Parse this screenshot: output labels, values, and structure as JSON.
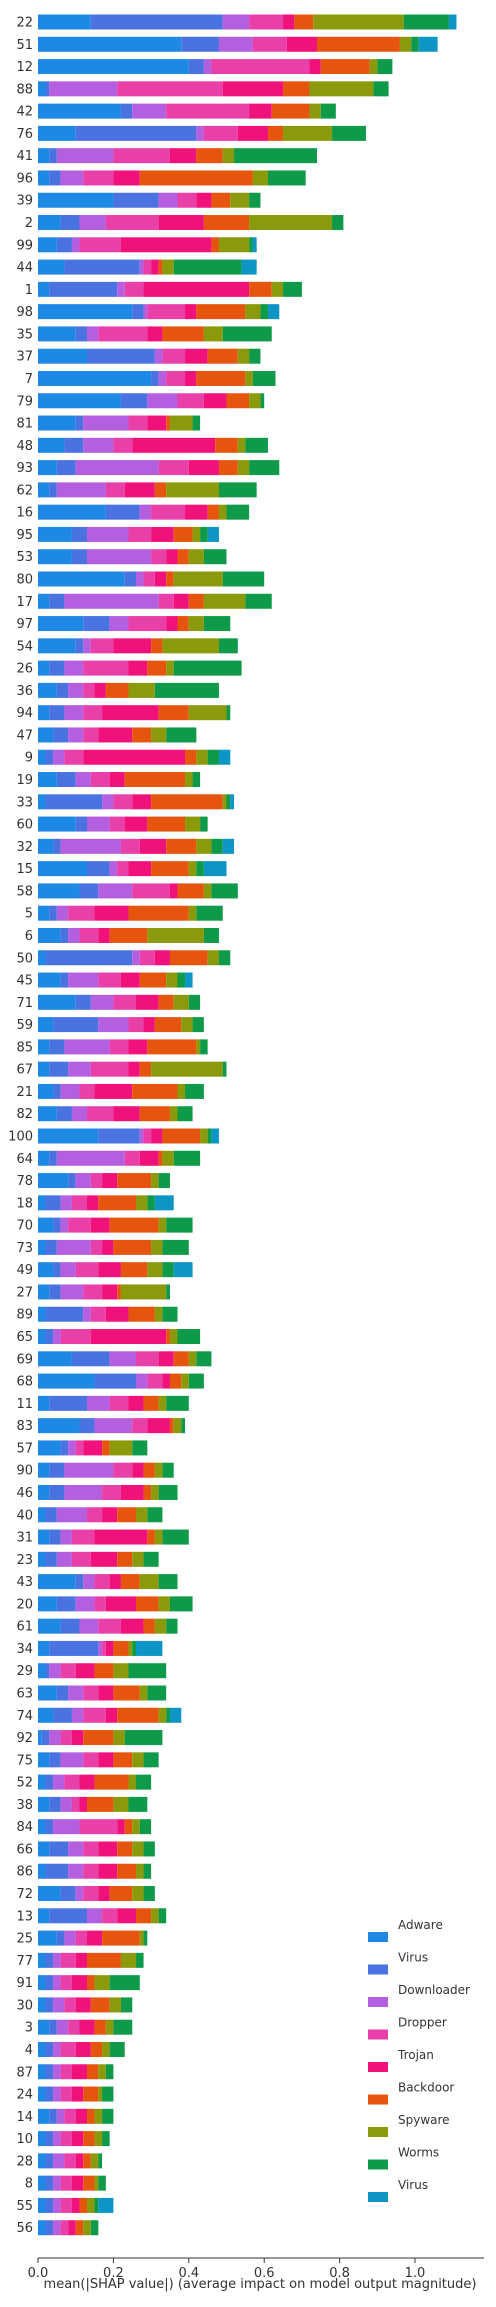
{
  "chart_data": {
    "type": "bar",
    "orientation": "horizontal",
    "stacked": true,
    "xlabel": "mean(|SHAP value|) (average impact on model output magnitude)",
    "xlim": [
      0,
      1.15
    ],
    "xticks": [
      "0.0",
      "0.2",
      "0.4",
      "0.6",
      "0.8",
      "1.0"
    ],
    "xtick_values": [
      0,
      0.2,
      0.4,
      0.6,
      0.8,
      1.0
    ],
    "grid": false,
    "legend_position": "lower-right",
    "categories": [
      "22",
      "51",
      "12",
      "88",
      "42",
      "76",
      "41",
      "96",
      "39",
      "2",
      "99",
      "44",
      "1",
      "98",
      "35",
      "37",
      "7",
      "79",
      "81",
      "48",
      "93",
      "62",
      "16",
      "95",
      "53",
      "80",
      "17",
      "97",
      "54",
      "26",
      "36",
      "94",
      "47",
      "9",
      "19",
      "33",
      "60",
      "32",
      "15",
      "58",
      "5",
      "6",
      "50",
      "45",
      "71",
      "59",
      "85",
      "67",
      "21",
      "82",
      "100",
      "64",
      "78",
      "18",
      "70",
      "73",
      "49",
      "27",
      "89",
      "65",
      "69",
      "68",
      "11",
      "83",
      "57",
      "90",
      "46",
      "40",
      "31",
      "23",
      "43",
      "20",
      "61",
      "34",
      "29",
      "63",
      "74",
      "92",
      "75",
      "52",
      "38",
      "84",
      "66",
      "86",
      "72",
      "13",
      "25",
      "77",
      "91",
      "30",
      "3",
      "4",
      "87",
      "24",
      "14",
      "10",
      "28",
      "8",
      "55",
      "56"
    ],
    "series": [
      {
        "name": "Adware",
        "color": "#1e88e5",
        "values": [
          0.14,
          0.38,
          0.4,
          0.02,
          0.22,
          0.1,
          0.03,
          0.03,
          0.2,
          0.06,
          0.05,
          0.07,
          0.03,
          0.25,
          0.1,
          0.13,
          0.3,
          0.22,
          0.1,
          0.07,
          0.05,
          0.03,
          0.18,
          0.09,
          0.09,
          0.23,
          0.03,
          0.12,
          0.1,
          0.03,
          0.05,
          0.03,
          0.04,
          0.02,
          0.05,
          0.02,
          0.1,
          0.04,
          0.13,
          0.11,
          0.03,
          0.06,
          0.02,
          0.06,
          0.1,
          0.04,
          0.03,
          0.03,
          0.04,
          0.05,
          0.16,
          0.03,
          0.08,
          0.02,
          0.04,
          0.02,
          0.04,
          0.03,
          0.02,
          0.02,
          0.09,
          0.15,
          0.03,
          0.11,
          0.06,
          0.03,
          0.03,
          0.02,
          0.03,
          0.02,
          0.1,
          0.05,
          0.06,
          0.03,
          0.02,
          0.05,
          0.04,
          0.01,
          0.03,
          0.02,
          0.03,
          0.02,
          0.03,
          0.02,
          0.06,
          0.03,
          0.05,
          0.02,
          0.02,
          0.02,
          0.03,
          0.02,
          0.02,
          0.02,
          0.03,
          0.02,
          0.02,
          0.02,
          0.02,
          0.02
        ]
      },
      {
        "name": "Virus",
        "color": "#4a72e0",
        "values": [
          0.35,
          0.1,
          0.04,
          0.01,
          0.03,
          0.32,
          0.02,
          0.03,
          0.12,
          0.05,
          0.04,
          0.2,
          0.18,
          0.03,
          0.03,
          0.18,
          0.02,
          0.07,
          0.02,
          0.05,
          0.05,
          0.02,
          0.09,
          0.04,
          0.04,
          0.03,
          0.04,
          0.07,
          0.02,
          0.04,
          0.03,
          0.04,
          0.04,
          0.02,
          0.05,
          0.15,
          0.03,
          0.02,
          0.06,
          0.05,
          0.02,
          0.02,
          0.23,
          0.02,
          0.04,
          0.12,
          0.04,
          0.05,
          0.02,
          0.04,
          0.11,
          0.02,
          0.02,
          0.04,
          0.02,
          0.03,
          0.02,
          0.03,
          0.1,
          0.02,
          0.1,
          0.11,
          0.1,
          0.04,
          0.02,
          0.04,
          0.04,
          0.03,
          0.03,
          0.03,
          0.02,
          0.05,
          0.05,
          0.13,
          0.01,
          0.03,
          0.05,
          0.02,
          0.03,
          0.02,
          0.03,
          0.02,
          0.05,
          0.06,
          0.04,
          0.1,
          0.02,
          0.02,
          0.02,
          0.02,
          0.02,
          0.02,
          0.02,
          0.02,
          0.02,
          0.02,
          0.02,
          0.02,
          0.02,
          0.02
        ]
      },
      {
        "name": "Downloader",
        "color": "#b45ee0",
        "values": [
          0.07,
          0.09,
          0.02,
          0.18,
          0.09,
          0.02,
          0.15,
          0.06,
          0.05,
          0.07,
          0.02,
          0.01,
          0.02,
          0.01,
          0.03,
          0.02,
          0.02,
          0.08,
          0.12,
          0.08,
          0.22,
          0.13,
          0.03,
          0.11,
          0.17,
          0.02,
          0.25,
          0.05,
          0.02,
          0.05,
          0.04,
          0.05,
          0.04,
          0.03,
          0.04,
          0.03,
          0.06,
          0.16,
          0.02,
          0.09,
          0.03,
          0.03,
          0.02,
          0.08,
          0.06,
          0.08,
          0.12,
          0.06,
          0.05,
          0.04,
          0.01,
          0.18,
          0.04,
          0.03,
          0.02,
          0.09,
          0.04,
          0.06,
          0.02,
          0.02,
          0.07,
          0.03,
          0.06,
          0.1,
          0.02,
          0.13,
          0.1,
          0.08,
          0.03,
          0.04,
          0.03,
          0.05,
          0.05,
          0.01,
          0.03,
          0.04,
          0.03,
          0.03,
          0.06,
          0.03,
          0.03,
          0.07,
          0.04,
          0.04,
          0.02,
          0.04,
          0.03,
          0.02,
          0.02,
          0.03,
          0.03,
          0.02,
          0.02,
          0.02,
          0.02,
          0.02,
          0.03,
          0.02,
          0.02,
          0.02
        ]
      },
      {
        "name": "Dropper",
        "color": "#e83fa8",
        "values": [
          0.09,
          0.09,
          0.26,
          0.28,
          0.22,
          0.09,
          0.15,
          0.08,
          0.05,
          0.14,
          0.11,
          0.02,
          0.05,
          0.1,
          0.13,
          0.06,
          0.05,
          0.07,
          0.05,
          0.05,
          0.08,
          0.05,
          0.09,
          0.06,
          0.04,
          0.03,
          0.04,
          0.1,
          0.06,
          0.12,
          0.03,
          0.05,
          0.04,
          0.05,
          0.05,
          0.05,
          0.04,
          0.05,
          0.03,
          0.1,
          0.07,
          0.05,
          0.04,
          0.06,
          0.06,
          0.04,
          0.05,
          0.1,
          0.04,
          0.07,
          0.02,
          0.04,
          0.03,
          0.04,
          0.06,
          0.03,
          0.06,
          0.05,
          0.04,
          0.08,
          0.06,
          0.04,
          0.05,
          0.04,
          0.02,
          0.05,
          0.05,
          0.04,
          0.06,
          0.05,
          0.04,
          0.03,
          0.06,
          0.01,
          0.04,
          0.04,
          0.06,
          0.03,
          0.04,
          0.04,
          0.02,
          0.1,
          0.04,
          0.04,
          0.04,
          0.04,
          0.03,
          0.04,
          0.03,
          0.03,
          0.03,
          0.04,
          0.03,
          0.03,
          0.03,
          0.03,
          0.03,
          0.03,
          0.03,
          0.02
        ]
      },
      {
        "name": "Trojan",
        "color": "#f0127a",
        "values": [
          0.03,
          0.08,
          0.03,
          0.16,
          0.06,
          0.08,
          0.07,
          0.07,
          0.04,
          0.12,
          0.24,
          0.02,
          0.28,
          0.03,
          0.04,
          0.06,
          0.03,
          0.06,
          0.05,
          0.22,
          0.08,
          0.08,
          0.06,
          0.06,
          0.03,
          0.03,
          0.04,
          0.03,
          0.1,
          0.05,
          0.03,
          0.15,
          0.09,
          0.27,
          0.04,
          0.05,
          0.06,
          0.07,
          0.06,
          0.02,
          0.09,
          0.03,
          0.04,
          0.05,
          0.06,
          0.03,
          0.05,
          0.03,
          0.1,
          0.07,
          0.03,
          0.05,
          0.04,
          0.03,
          0.05,
          0.03,
          0.06,
          0.04,
          0.06,
          0.2,
          0.04,
          0.02,
          0.04,
          0.06,
          0.05,
          0.03,
          0.06,
          0.04,
          0.14,
          0.07,
          0.03,
          0.08,
          0.06,
          0.02,
          0.05,
          0.04,
          0.03,
          0.03,
          0.04,
          0.04,
          0.02,
          0.02,
          0.05,
          0.05,
          0.03,
          0.05,
          0.04,
          0.03,
          0.04,
          0.04,
          0.04,
          0.04,
          0.04,
          0.03,
          0.03,
          0.03,
          0.02,
          0.03,
          0.02,
          0.02
        ]
      },
      {
        "name": "Backdoor",
        "color": "#e6550d",
        "values": [
          0.05,
          0.22,
          0.13,
          0.07,
          0.1,
          0.04,
          0.07,
          0.3,
          0.05,
          0.12,
          0.02,
          0.01,
          0.06,
          0.13,
          0.11,
          0.08,
          0.13,
          0.06,
          0.01,
          0.06,
          0.05,
          0.03,
          0.03,
          0.05,
          0.03,
          0.02,
          0.04,
          0.03,
          0.03,
          0.05,
          0.06,
          0.08,
          0.05,
          0.03,
          0.16,
          0.19,
          0.1,
          0.08,
          0.1,
          0.07,
          0.16,
          0.1,
          0.1,
          0.07,
          0.04,
          0.07,
          0.13,
          0.03,
          0.12,
          0.08,
          0.1,
          0.01,
          0.09,
          0.1,
          0.13,
          0.1,
          0.07,
          0.01,
          0.07,
          0.01,
          0.04,
          0.03,
          0.04,
          0.01,
          0.02,
          0.03,
          0.02,
          0.05,
          0.02,
          0.04,
          0.05,
          0.06,
          0.03,
          0.04,
          0.05,
          0.07,
          0.11,
          0.08,
          0.05,
          0.09,
          0.07,
          0.02,
          0.04,
          0.05,
          0.06,
          0.04,
          0.1,
          0.09,
          0.02,
          0.05,
          0.03,
          0.03,
          0.03,
          0.04,
          0.02,
          0.03,
          0.02,
          0.03,
          0.02,
          0.02
        ]
      },
      {
        "name": "Spyware",
        "color": "#8b9a0a",
        "values": [
          0.24,
          0.03,
          0.02,
          0.17,
          0.03,
          0.13,
          0.03,
          0.04,
          0.05,
          0.22,
          0.08,
          0.03,
          0.03,
          0.04,
          0.05,
          0.03,
          0.02,
          0.03,
          0.06,
          0.02,
          0.03,
          0.14,
          0.02,
          0.02,
          0.04,
          0.13,
          0.11,
          0.04,
          0.15,
          0.02,
          0.07,
          0.1,
          0.04,
          0.03,
          0.02,
          0.01,
          0.04,
          0.04,
          0.02,
          0.02,
          0.02,
          0.15,
          0.03,
          0.03,
          0.04,
          0.03,
          0.01,
          0.19,
          0.02,
          0.02,
          0.02,
          0.03,
          0.02,
          0.03,
          0.02,
          0.03,
          0.04,
          0.12,
          0.02,
          0.02,
          0.02,
          0.02,
          0.02,
          0.02,
          0.06,
          0.02,
          0.02,
          0.03,
          0.02,
          0.03,
          0.05,
          0.03,
          0.03,
          0.01,
          0.04,
          0.02,
          0.02,
          0.03,
          0.03,
          0.02,
          0.04,
          0.02,
          0.03,
          0.02,
          0.03,
          0.02,
          0.01,
          0.04,
          0.04,
          0.03,
          0.02,
          0.02,
          0.02,
          0.01,
          0.02,
          0.02,
          0.02,
          0.01,
          0.02,
          0.02
        ]
      },
      {
        "name": "Worms",
        "color": "#0e9a48",
        "values": [
          0.12,
          0.02,
          0.04,
          0.04,
          0.04,
          0.09,
          0.22,
          0.1,
          0.03,
          0.03,
          0.01,
          0.18,
          0.05,
          0.02,
          0.13,
          0.03,
          0.06,
          0.01,
          0.02,
          0.06,
          0.08,
          0.1,
          0.06,
          0.02,
          0.06,
          0.11,
          0.07,
          0.07,
          0.05,
          0.18,
          0.17,
          0.01,
          0.08,
          0.03,
          0.02,
          0.01,
          0.02,
          0.03,
          0.02,
          0.07,
          0.07,
          0.04,
          0.03,
          0.02,
          0.03,
          0.03,
          0.02,
          0.01,
          0.05,
          0.04,
          0.01,
          0.07,
          0.03,
          0.02,
          0.07,
          0.07,
          0.03,
          0.01,
          0.04,
          0.06,
          0.04,
          0.04,
          0.06,
          0.01,
          0.04,
          0.03,
          0.05,
          0.04,
          0.07,
          0.04,
          0.05,
          0.06,
          0.03,
          0.01,
          0.1,
          0.05,
          0.01,
          0.1,
          0.04,
          0.04,
          0.05,
          0.03,
          0.03,
          0.02,
          0.03,
          0.02,
          0.01,
          0.02,
          0.08,
          0.03,
          0.05,
          0.04,
          0.02,
          0.03,
          0.03,
          0.02,
          0.01,
          0.02,
          0.01,
          0.02
        ]
      },
      {
        "name": "Virus",
        "color": "#0d95c6",
        "values": [
          0.02,
          0.05,
          0.0,
          0.0,
          0.0,
          0.0,
          0.0,
          0.0,
          0.0,
          0.0,
          0.01,
          0.04,
          0.0,
          0.03,
          0.0,
          0.0,
          0.0,
          0.0,
          0.0,
          0.0,
          0.0,
          0.0,
          0.0,
          0.03,
          0.0,
          0.0,
          0.0,
          0.0,
          0.0,
          0.0,
          0.0,
          0.0,
          0.0,
          0.03,
          0.0,
          0.01,
          0.0,
          0.03,
          0.06,
          0.0,
          0.0,
          0.0,
          0.0,
          0.02,
          0.0,
          0.0,
          0.0,
          0.0,
          0.0,
          0.0,
          0.02,
          0.0,
          0.0,
          0.05,
          0.0,
          0.0,
          0.05,
          0.0,
          0.0,
          0.0,
          0.0,
          0.0,
          0.0,
          0.0,
          0.0,
          0.0,
          0.0,
          0.0,
          0.0,
          0.0,
          0.0,
          0.0,
          0.0,
          0.07,
          0.0,
          0.0,
          0.03,
          0.0,
          0.0,
          0.0,
          0.0,
          0.0,
          0.0,
          0.0,
          0.0,
          0.0,
          0.0,
          0.0,
          0.0,
          0.0,
          0.0,
          0.0,
          0.0,
          0.0,
          0.0,
          0.0,
          0.0,
          0.0,
          0.04,
          0.0
        ]
      }
    ]
  }
}
